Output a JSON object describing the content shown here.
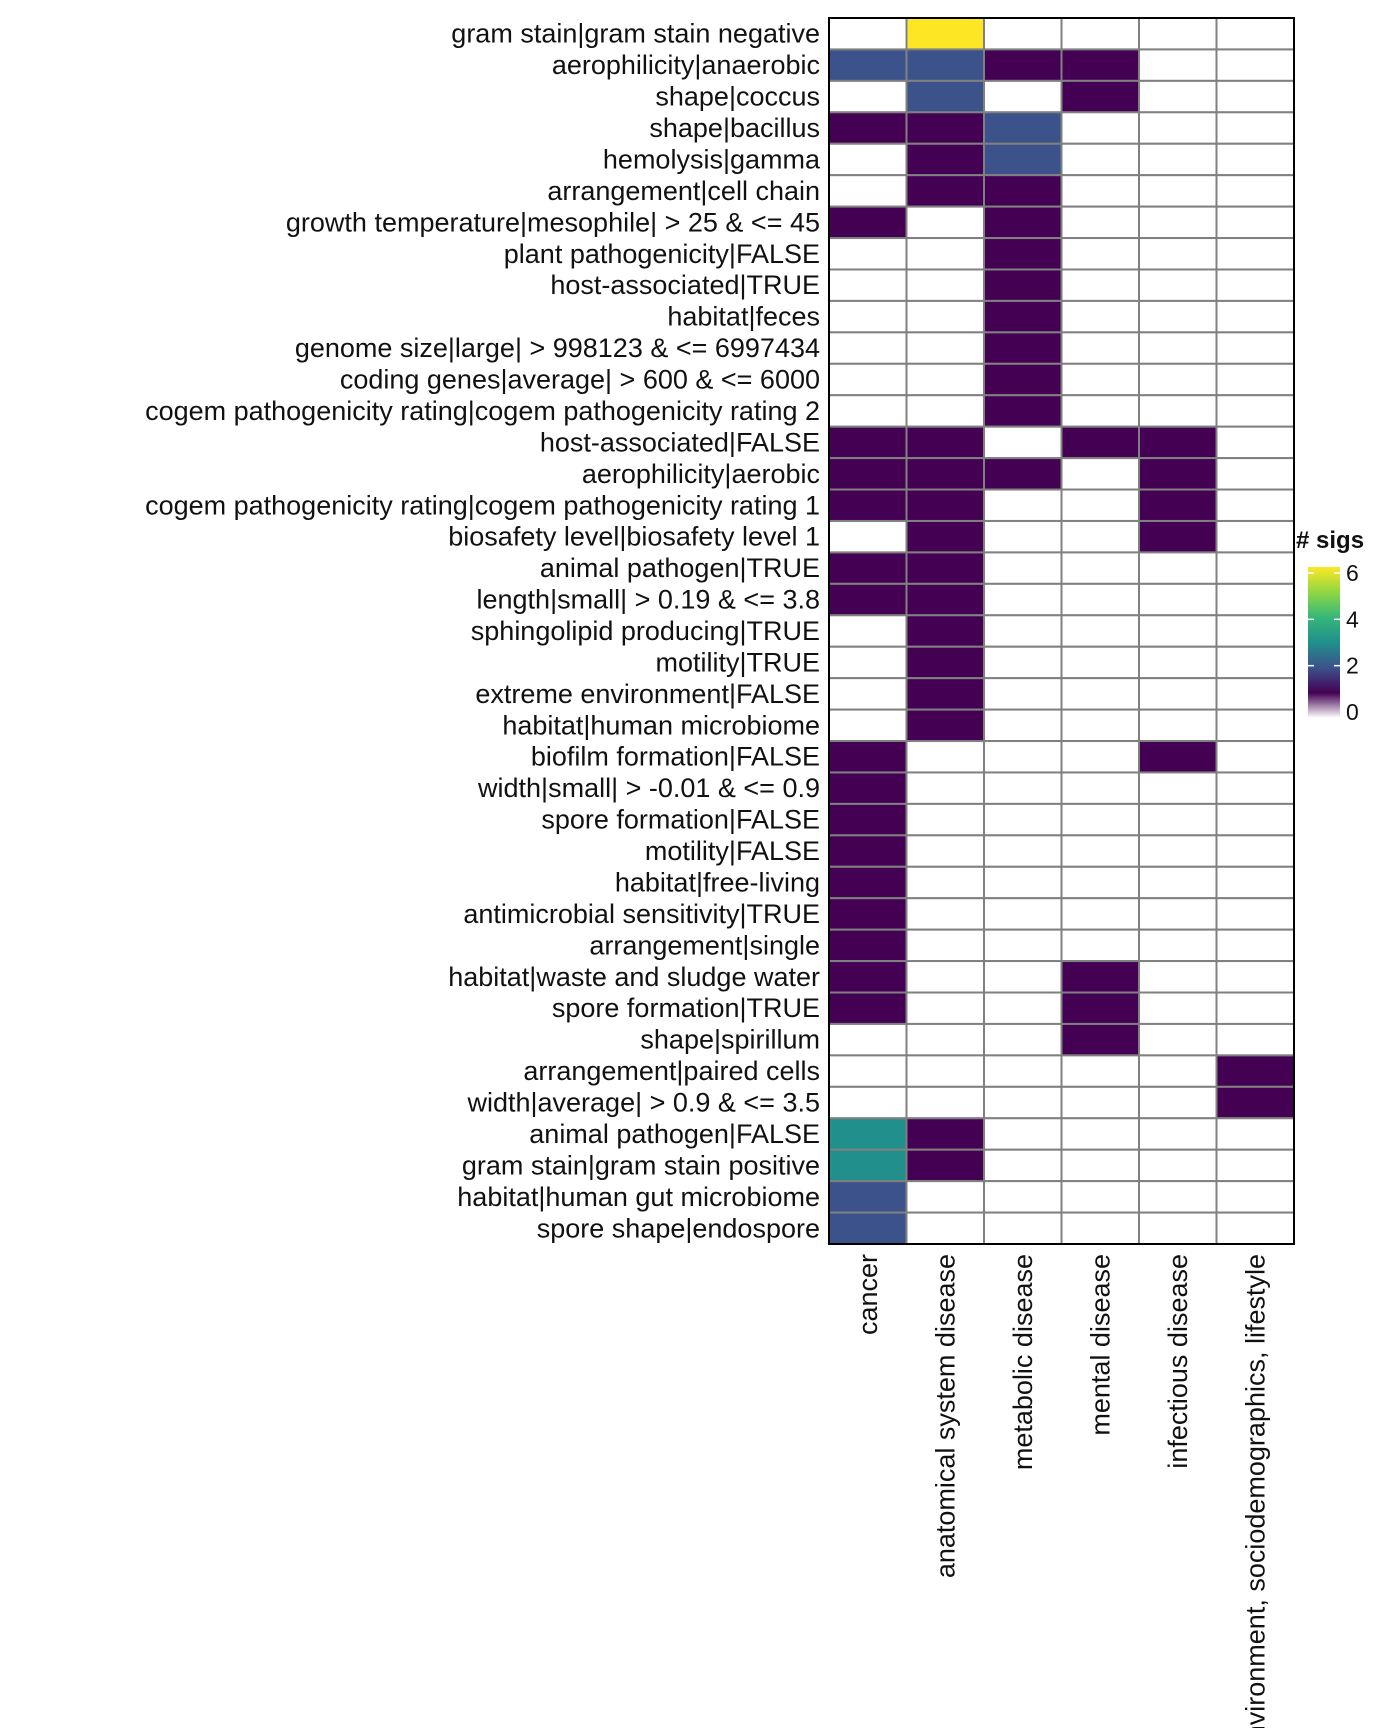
{
  "chart_data": {
    "type": "heatmap",
    "title": "",
    "xlabel": "",
    "ylabel": "",
    "columns": [
      "cancer",
      "anatomical system disease",
      "metabolic disease",
      "mental disease",
      "infectious disease",
      "environment, sociodemographics, lifestyle"
    ],
    "rows": [
      "gram stain|gram stain negative",
      "aerophilicity|anaerobic",
      "shape|coccus",
      "shape|bacillus",
      "hemolysis|gamma",
      "arrangement|cell chain",
      "growth temperature|mesophile| > 25 & <= 45",
      "plant pathogenicity|FALSE",
      "host-associated|TRUE",
      "habitat|feces",
      "genome size|large| > 998123 & <= 6997434",
      "coding genes|average| > 600 & <= 6000",
      "cogem pathogenicity rating|cogem pathogenicity rating 2",
      "host-associated|FALSE",
      "aerophilicity|aerobic",
      "cogem pathogenicity rating|cogem pathogenicity rating 1",
      "biosafety level|biosafety level 1",
      "animal pathogen|TRUE",
      "length|small| > 0.19 & <= 3.8",
      "sphingolipid producing|TRUE",
      "motility|TRUE",
      "extreme environment|FALSE",
      "habitat|human microbiome",
      "biofilm formation|FALSE",
      "width|small| > -0.01 & <= 0.9",
      "spore formation|FALSE",
      "motility|FALSE",
      "habitat|free-living",
      "antimicrobial sensitivity|TRUE",
      "arrangement|single",
      "habitat|waste and sludge water",
      "spore formation|TRUE",
      "shape|spirillum",
      "arrangement|paired cells",
      "width|average| > 0.9 & <= 3.5",
      "animal pathogen|FALSE",
      "gram stain|gram stain positive",
      "habitat|human gut microbiome",
      "spore shape|endospore"
    ],
    "values": [
      [
        0,
        6,
        0,
        0,
        0,
        0
      ],
      [
        2,
        2,
        1,
        1,
        0,
        0
      ],
      [
        0,
        2,
        0,
        1,
        0,
        0
      ],
      [
        1,
        1,
        2,
        0,
        0,
        0
      ],
      [
        0,
        1,
        2,
        0,
        0,
        0
      ],
      [
        0,
        1,
        1,
        0,
        0,
        0
      ],
      [
        1,
        0,
        1,
        0,
        0,
        0
      ],
      [
        0,
        0,
        1,
        0,
        0,
        0
      ],
      [
        0,
        0,
        1,
        0,
        0,
        0
      ],
      [
        0,
        0,
        1,
        0,
        0,
        0
      ],
      [
        0,
        0,
        1,
        0,
        0,
        0
      ],
      [
        0,
        0,
        1,
        0,
        0,
        0
      ],
      [
        0,
        0,
        1,
        0,
        0,
        0
      ],
      [
        1,
        1,
        0,
        1,
        1,
        0
      ],
      [
        1,
        1,
        1,
        0,
        1,
        0
      ],
      [
        1,
        1,
        0,
        0,
        1,
        0
      ],
      [
        0,
        1,
        0,
        0,
        1,
        0
      ],
      [
        1,
        1,
        0,
        0,
        0,
        0
      ],
      [
        1,
        1,
        0,
        0,
        0,
        0
      ],
      [
        0,
        1,
        0,
        0,
        0,
        0
      ],
      [
        0,
        1,
        0,
        0,
        0,
        0
      ],
      [
        0,
        1,
        0,
        0,
        0,
        0
      ],
      [
        0,
        1,
        0,
        0,
        0,
        0
      ],
      [
        1,
        0,
        0,
        0,
        1,
        0
      ],
      [
        1,
        0,
        0,
        0,
        0,
        0
      ],
      [
        1,
        0,
        0,
        0,
        0,
        0
      ],
      [
        1,
        0,
        0,
        0,
        0,
        0
      ],
      [
        1,
        0,
        0,
        0,
        0,
        0
      ],
      [
        1,
        0,
        0,
        0,
        0,
        0
      ],
      [
        1,
        0,
        0,
        0,
        0,
        0
      ],
      [
        1,
        0,
        0,
        1,
        0,
        0
      ],
      [
        1,
        0,
        0,
        1,
        0,
        0
      ],
      [
        0,
        0,
        0,
        1,
        0,
        0
      ],
      [
        0,
        0,
        0,
        0,
        0,
        1
      ],
      [
        0,
        0,
        0,
        0,
        0,
        1
      ],
      [
        3,
        1,
        0,
        0,
        0,
        0
      ],
      [
        3,
        1,
        0,
        0,
        0,
        0
      ],
      [
        2,
        0,
        0,
        0,
        0,
        0
      ],
      [
        2,
        0,
        0,
        0,
        0,
        0
      ]
    ],
    "legend": {
      "title": "# sigs",
      "ticks": [
        "0",
        "2",
        "4",
        "6"
      ],
      "range": [
        0,
        6
      ],
      "placement": "right"
    },
    "colorscale": [
      {
        "value": 0,
        "color": "#FFFFFF"
      },
      {
        "value": 1,
        "color": "#440154"
      },
      {
        "value": 2,
        "color": "#3B528B"
      },
      {
        "value": 3,
        "color": "#21908C"
      },
      {
        "value": 4,
        "color": "#35B779"
      },
      {
        "value": 5,
        "color": "#90D743"
      },
      {
        "value": 6,
        "color": "#FDE725"
      }
    ],
    "grid_color": "#808080"
  }
}
